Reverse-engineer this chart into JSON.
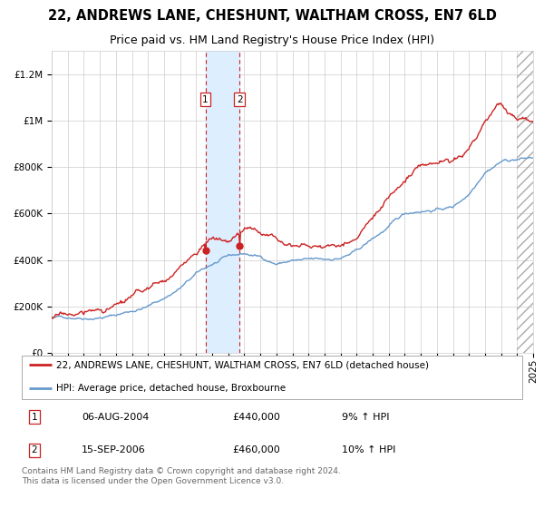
{
  "title": "22, ANDREWS LANE, CHESHUNT, WALTHAM CROSS, EN7 6LD",
  "subtitle": "Price paid vs. HM Land Registry's House Price Index (HPI)",
  "ylim": [
    0,
    1300000
  ],
  "yticks": [
    0,
    200000,
    400000,
    600000,
    800000,
    1000000,
    1200000
  ],
  "ytick_labels": [
    "£0",
    "£200K",
    "£400K",
    "£600K",
    "£800K",
    "£1M",
    "£1.2M"
  ],
  "t1_year": 2004.58,
  "t2_year": 2006.71,
  "t1_price": 440000,
  "t2_price": 460000,
  "line_color_red": "#cc2222",
  "line_color_blue": "#6699cc",
  "shade_color": "#ddeeff",
  "legend_label_red": "22, ANDREWS LANE, CHESHUNT, WALTHAM CROSS, EN7 6LD (detached house)",
  "legend_label_blue": "HPI: Average price, detached house, Broxbourne",
  "footer": "Contains HM Land Registry data © Crown copyright and database right 2024.\nThis data is licensed under the Open Government Licence v3.0.",
  "bg_color": "#ffffff",
  "grid_color": "#cccccc",
  "hatch_color": "#aaaaaa",
  "title_fontsize": 10.5,
  "subtitle_fontsize": 9,
  "tick_fontsize": 7.5,
  "legend_fontsize": 7.5,
  "footer_fontsize": 6.5,
  "label1_text": "1",
  "label2_text": "2",
  "table_row1": [
    "1",
    "06-AUG-2004",
    "£440,000",
    "9% ↑ HPI"
  ],
  "table_row2": [
    "2",
    "15-SEP-2006",
    "£460,000",
    "10% ↑ HPI"
  ]
}
